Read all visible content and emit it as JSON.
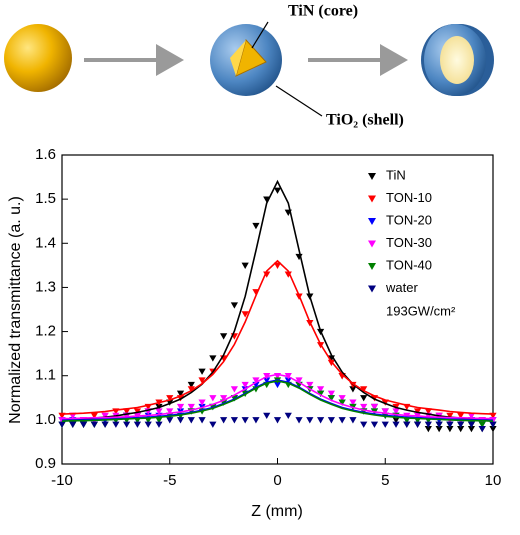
{
  "diagram": {
    "core_label": "TiN (core)",
    "shell_label": "TiO₂ (shell)"
  },
  "chart_data": {
    "type": "scatter",
    "x_label": "Z (mm)",
    "y_label": "Normalized transmittance (a. u.)",
    "annotation": "193GW/cm²",
    "xlim": [
      -10,
      10
    ],
    "xticks": [
      -10,
      -5,
      0,
      5,
      10
    ],
    "ylim": [
      0.9,
      1.6
    ],
    "yticks": [
      0.9,
      {
        "value": 1,
        "label": "1.0"
      },
      1.1,
      1.2,
      1.3,
      1.4,
      1.5,
      1.6
    ],
    "x": [
      -10,
      -9.5,
      -9,
      -8.5,
      -8,
      -7.5,
      -7,
      -6.5,
      -6,
      -5.5,
      -5,
      -4.5,
      -4,
      -3.5,
      -3,
      -2.5,
      -2,
      -1.5,
      -1,
      -0.5,
      0,
      0.5,
      1,
      1.5,
      2,
      2.5,
      3,
      3.5,
      4,
      4.5,
      5,
      5.5,
      6,
      6.5,
      7,
      7.5,
      8,
      8.5,
      9,
      9.5,
      10
    ],
    "series": [
      {
        "name": "TiN",
        "color": "#000000",
        "values": [
          0.99,
          0.99,
          0.99,
          0.99,
          1.0,
          1.0,
          1.01,
          1.01,
          1.02,
          1.03,
          1.04,
          1.06,
          1.08,
          1.11,
          1.14,
          1.19,
          1.26,
          1.35,
          1.44,
          1.5,
          1.52,
          1.47,
          1.37,
          1.28,
          1.2,
          1.14,
          1.1,
          1.07,
          1.05,
          1.03,
          1.02,
          1.0,
          0.99,
          0.99,
          0.98,
          0.98,
          0.98,
          0.98,
          0.98,
          0.98,
          0.98
        ],
        "fit": [
          0.999,
          1.001,
          1.002,
          1.004,
          1.006,
          1.009,
          1.013,
          1.017,
          1.022,
          1.028,
          1.037,
          1.047,
          1.062,
          1.081,
          1.108,
          1.147,
          1.201,
          1.28,
          1.384,
          1.491,
          1.54,
          1.491,
          1.384,
          1.28,
          1.201,
          1.147,
          1.108,
          1.081,
          1.062,
          1.047,
          1.037,
          1.028,
          1.022,
          1.017,
          1.013,
          1.009,
          1.006,
          1.004,
          1.002,
          1.001,
          0.999
        ]
      },
      {
        "name": "TON-10",
        "color": "#ff0000",
        "values": [
          1.01,
          1.01,
          1.0,
          1.01,
          1.01,
          1.02,
          1.02,
          1.02,
          1.03,
          1.04,
          1.05,
          1.05,
          1.07,
          1.09,
          1.11,
          1.14,
          1.19,
          1.24,
          1.29,
          1.33,
          1.35,
          1.33,
          1.28,
          1.22,
          1.17,
          1.13,
          1.1,
          1.08,
          1.07,
          1.05,
          1.04,
          1.03,
          1.03,
          1.02,
          1.02,
          1.01,
          1.01,
          1.01,
          1.01,
          1.0,
          1.01
        ],
        "fit": [
          1.013,
          1.014,
          1.015,
          1.017,
          1.019,
          1.022,
          1.025,
          1.028,
          1.033,
          1.039,
          1.045,
          1.054,
          1.066,
          1.082,
          1.103,
          1.132,
          1.171,
          1.222,
          1.282,
          1.337,
          1.36,
          1.337,
          1.282,
          1.222,
          1.171,
          1.132,
          1.103,
          1.082,
          1.066,
          1.054,
          1.045,
          1.039,
          1.033,
          1.028,
          1.025,
          1.022,
          1.019,
          1.017,
          1.015,
          1.014,
          1.013
        ]
      },
      {
        "name": "TON-20",
        "color": "#0000ff",
        "values": [
          1.0,
          1.0,
          0.99,
          1.0,
          1.0,
          1.0,
          1.01,
          1.0,
          1.01,
          1.01,
          1.01,
          1.02,
          1.02,
          1.03,
          1.03,
          1.04,
          1.05,
          1.07,
          1.08,
          1.09,
          1.08,
          1.09,
          1.08,
          1.07,
          1.06,
          1.05,
          1.04,
          1.03,
          1.02,
          1.02,
          1.01,
          1.01,
          1.0,
          1.0,
          1.0,
          1.0,
          0.99,
          1.0,
          1.0,
          0.99,
          1.0
        ],
        "fit": [
          0.999,
          1.0,
          1.0,
          1.001,
          1.002,
          1.003,
          1.004,
          1.005,
          1.006,
          1.008,
          1.01,
          1.013,
          1.017,
          1.022,
          1.028,
          1.037,
          1.047,
          1.06,
          1.074,
          1.085,
          1.09,
          1.085,
          1.074,
          1.06,
          1.047,
          1.037,
          1.028,
          1.022,
          1.017,
          1.013,
          1.01,
          1.008,
          1.006,
          1.005,
          1.004,
          1.003,
          1.002,
          1.001,
          1.0,
          1.0,
          0.999
        ]
      },
      {
        "name": "TON-30",
        "color": "#ff00ff",
        "values": [
          1.0,
          1.01,
          1.0,
          1.0,
          1.01,
          1.01,
          1.01,
          1.01,
          1.02,
          1.02,
          1.02,
          1.03,
          1.03,
          1.04,
          1.05,
          1.05,
          1.07,
          1.08,
          1.09,
          1.1,
          1.1,
          1.1,
          1.09,
          1.08,
          1.07,
          1.06,
          1.05,
          1.04,
          1.03,
          1.03,
          1.02,
          1.02,
          1.01,
          1.01,
          1.01,
          1.01,
          1.0,
          1.0,
          1.01,
          1.0,
          1.0
        ],
        "fit": [
          1.003,
          1.003,
          1.004,
          1.005,
          1.005,
          1.006,
          1.007,
          1.009,
          1.01,
          1.012,
          1.015,
          1.018,
          1.022,
          1.028,
          1.035,
          1.044,
          1.056,
          1.07,
          1.085,
          1.098,
          1.103,
          1.098,
          1.085,
          1.07,
          1.056,
          1.044,
          1.035,
          1.028,
          1.022,
          1.018,
          1.015,
          1.012,
          1.01,
          1.009,
          1.007,
          1.006,
          1.005,
          1.005,
          1.004,
          1.003,
          1.003
        ]
      },
      {
        "name": "TON-40",
        "color": "#008000",
        "values": [
          0.99,
          0.99,
          0.99,
          0.99,
          0.99,
          1.0,
          1.0,
          1.0,
          1.0,
          1.0,
          1.01,
          1.01,
          1.02,
          1.02,
          1.03,
          1.04,
          1.05,
          1.06,
          1.07,
          1.08,
          1.09,
          1.08,
          1.08,
          1.07,
          1.06,
          1.05,
          1.04,
          1.03,
          1.02,
          1.02,
          1.01,
          1.01,
          1.0,
          1.0,
          1.0,
          0.99,
          0.99,
          0.99,
          0.99,
          0.99,
          0.99
        ],
        "fit": [
          0.997,
          0.998,
          0.998,
          0.999,
          1.0,
          1.001,
          1.002,
          1.003,
          1.004,
          1.006,
          1.008,
          1.011,
          1.015,
          1.02,
          1.026,
          1.035,
          1.045,
          1.058,
          1.072,
          1.083,
          1.088,
          1.083,
          1.072,
          1.058,
          1.045,
          1.035,
          1.026,
          1.02,
          1.015,
          1.011,
          1.008,
          1.006,
          1.004,
          1.003,
          1.002,
          1.001,
          1.0,
          0.999,
          0.998,
          0.998,
          0.997
        ]
      },
      {
        "name": "water",
        "color": "#000080",
        "values": [
          0.99,
          0.99,
          0.99,
          0.99,
          0.99,
          0.99,
          0.99,
          0.99,
          0.99,
          0.99,
          1.0,
          1.0,
          1.0,
          1.0,
          0.99,
          1.0,
          1.0,
          1.0,
          1.0,
          1.01,
          1.0,
          1.01,
          1.0,
          1.0,
          1.0,
          1.0,
          1.0,
          1.0,
          0.99,
          0.99,
          0.99,
          0.99,
          0.99,
          0.99,
          0.99,
          0.99,
          0.99,
          0.99,
          0.99,
          0.98,
          0.99
        ]
      }
    ]
  }
}
